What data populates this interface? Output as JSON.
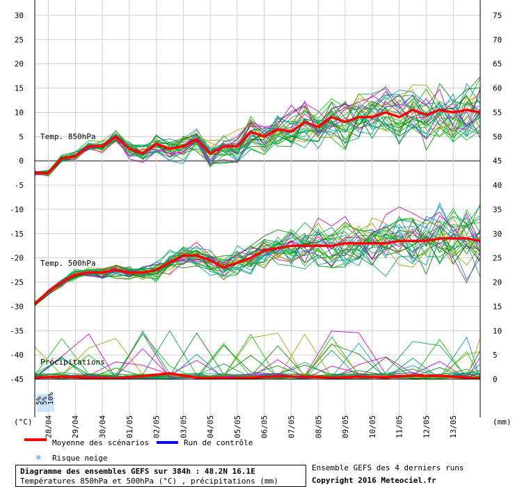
{
  "chart_data": {
    "type": "line",
    "title": "Diagramme des ensembles GEFS sur 384h : 48.2N 16.1E",
    "subtitle": "Températures 850hPa et 500hPa (°C) , précipitations (mm)",
    "left_axis": {
      "unit": "(°C)",
      "ticks": [
        30,
        25,
        20,
        15,
        10,
        5,
        0,
        -5,
        -10,
        -15,
        -20,
        -25,
        -30,
        -35,
        -40,
        -45
      ],
      "ylim": [
        -45,
        30
      ]
    },
    "right_axis": {
      "unit": "(mm)",
      "ticks": [
        75,
        70,
        65,
        60,
        55,
        50,
        45,
        40,
        35,
        30,
        25,
        20,
        15,
        10,
        5,
        0
      ],
      "ylim": [
        0,
        75
      ]
    },
    "x_tick_labels": [
      "28/04",
      "29/04",
      "30/04",
      "01/05",
      "02/05",
      "03/05",
      "04/05",
      "05/05",
      "06/05",
      "07/05",
      "08/05",
      "09/05",
      "10/05",
      "11/05",
      "12/05",
      "13/05"
    ],
    "section_labels": {
      "t850": "Temp. 850hPa",
      "t500": "Temp. 500hPa",
      "precip": "Précipitations"
    },
    "snow_risk_labels": [
      "5%",
      "5%",
      "10%"
    ],
    "series": [
      {
        "name": "Moyenne des scénarios",
        "group": "t850",
        "x": [
          0,
          0.5,
          1,
          1.5,
          2,
          2.5,
          3,
          3.5,
          4,
          4.5,
          5,
          5.5,
          6,
          6.5,
          7,
          7.5,
          8,
          8.5,
          9,
          9.5,
          10,
          10.5,
          11,
          11.5,
          12,
          12.5,
          13,
          13.5,
          14,
          14.5,
          15,
          15.5,
          16,
          16.5
        ],
        "values": [
          -2.5,
          -2.5,
          0.5,
          1,
          3,
          3,
          5,
          2.5,
          1.5,
          3.5,
          2.5,
          3,
          4.5,
          1.5,
          3,
          3,
          6,
          5,
          6.5,
          6,
          8,
          7,
          9,
          8,
          9,
          9,
          10,
          9,
          10.5,
          9.5,
          10.5,
          10,
          10.5,
          10
        ]
      },
      {
        "name": "Moyenne des scénarios",
        "group": "t500",
        "x": [
          0,
          0.5,
          1,
          1.5,
          2,
          2.5,
          3,
          3.5,
          4,
          4.5,
          5,
          5.5,
          6,
          6.5,
          7,
          7.5,
          8,
          8.5,
          9,
          9.5,
          10,
          10.5,
          11,
          11.5,
          12,
          12.5,
          13,
          13.5,
          14,
          14.5,
          15,
          15.5,
          16,
          16.5
        ],
        "values": [
          -29.5,
          -27,
          -25,
          -23.5,
          -23,
          -23,
          -22.5,
          -23,
          -23,
          -22.5,
          -21,
          -19.5,
          -19.5,
          -20.5,
          -22,
          -21,
          -20,
          -18.5,
          -18,
          -17.5,
          -17.5,
          -17.5,
          -17.5,
          -17,
          -17,
          -17,
          -17,
          -16.5,
          -16.5,
          -16.5,
          -16,
          -16,
          -16,
          -16.5
        ]
      },
      {
        "name": "Moyenne des scénarios",
        "group": "precip",
        "x": [
          0,
          1,
          2,
          3,
          4,
          5,
          6,
          7,
          8,
          9,
          10,
          11,
          12,
          13,
          14,
          15,
          16,
          16.5
        ],
        "values": [
          0.3,
          0.5,
          0.3,
          0.2,
          0.6,
          1.2,
          0.3,
          0.2,
          0.3,
          0.6,
          0.5,
          0.3,
          0.5,
          0.4,
          0.7,
          0.7,
          0.3,
          0.2
        ]
      }
    ],
    "colors": {
      "mean": "#ff0000",
      "control": "#0000ff",
      "members": [
        "#008000",
        "#00c000",
        "#c000c0",
        "#a0a000",
        "#0090c0",
        "#00a050"
      ],
      "snow": "#3399ff"
    },
    "legend": {
      "mean_label": "Moyenne des scénarios",
      "control_label": "Run de contrôle",
      "snow_label": "Risque neige"
    }
  },
  "footer": {
    "line1": "Diagramme des ensembles GEFS sur 384h : 48.2N 16.1E",
    "line2": "Températures 850hPa et 500hPa (°C) , précipitations (mm)",
    "right1": "Ensemble GEFS des 4 derniers runs",
    "right2": "Copyright 2016 Meteociel.fr"
  }
}
